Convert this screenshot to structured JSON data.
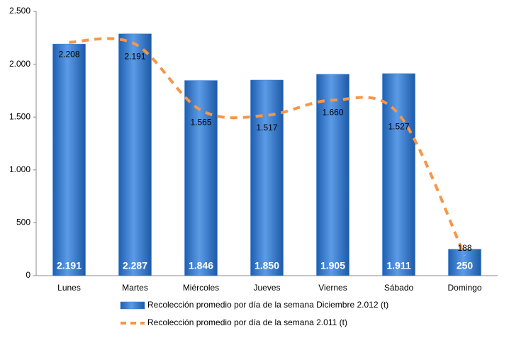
{
  "chart_data": {
    "type": "bar",
    "categories": [
      "Lunes",
      "Martes",
      "Miércoles",
      "Jueves",
      "Viernes",
      "Sábado",
      "Domingo"
    ],
    "series": [
      {
        "name": "Recolección promedio por día de la semana Diciembre 2.012 (t)",
        "type": "bar",
        "color": "#3a7dd1",
        "values": [
          2191,
          2287,
          1846,
          1850,
          1905,
          1911,
          250
        ],
        "value_labels": [
          "2.191",
          "2.287",
          "1.846",
          "1.850",
          "1.905",
          "1.911",
          "250"
        ]
      },
      {
        "name": "Recolección promedio por día de la semana 2.011 (t)",
        "type": "line",
        "color": "#f79646",
        "values": [
          2208,
          2191,
          1565,
          1517,
          1660,
          1527,
          188
        ],
        "value_labels": [
          "2.208",
          "2.191",
          "1.565",
          "1.517",
          "1.660",
          "1.527",
          "188"
        ]
      }
    ],
    "ylim": [
      0,
      2500
    ],
    "yticks": [
      0,
      500,
      {
        "value": 1000,
        "label": "1.000"
      },
      {
        "value": 1500,
        "label": "1.500"
      },
      {
        "value": 2000,
        "label": "2.000"
      },
      {
        "value": 2500,
        "label": "2.500"
      }
    ],
    "grid": false,
    "legend": "bottom"
  }
}
